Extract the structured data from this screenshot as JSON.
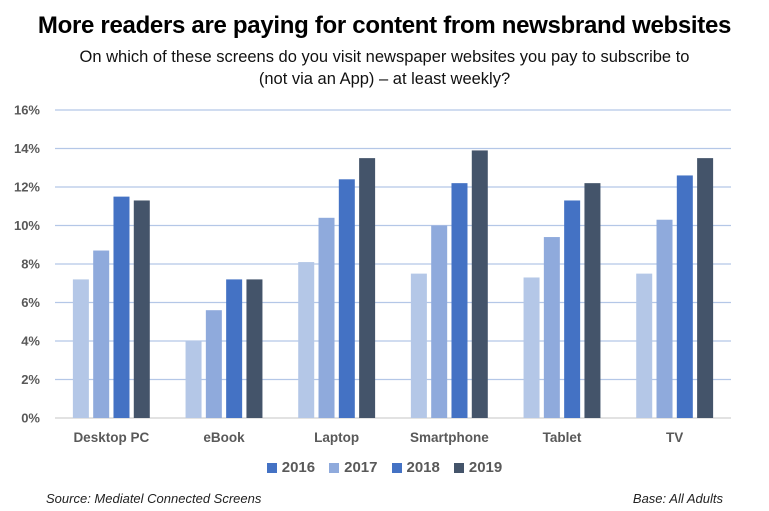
{
  "chart_data": {
    "type": "bar",
    "title": "More readers are paying for content from newsbrand websites",
    "subtitle_lines": [
      "On which of these screens do you visit newspaper websites you pay to subscribe to",
      "(not via an App) – at least weekly?"
    ],
    "xlabel": "",
    "ylabel": "",
    "ylim": [
      0,
      16
    ],
    "y_ticks": [
      "0%",
      "2%",
      "4%",
      "6%",
      "8%",
      "10%",
      "12%",
      "14%",
      "16%"
    ],
    "y_tick_values": [
      0,
      2,
      4,
      6,
      8,
      10,
      12,
      14,
      16
    ],
    "grid": true,
    "legend_position": "bottom",
    "categories": [
      "Desktop PC",
      "eBook",
      "Laptop",
      "Smartphone",
      "Tablet",
      "TV"
    ],
    "series": [
      {
        "name": "2016",
        "color": "#B4C7E7",
        "legend_color": "#4472C4",
        "values": [
          7.2,
          4.0,
          8.1,
          7.5,
          7.3,
          7.5
        ]
      },
      {
        "name": "2017",
        "color": "#8FAADC",
        "legend_color": "#8FAADC",
        "values": [
          8.7,
          5.6,
          10.4,
          10.0,
          9.4,
          10.3
        ]
      },
      {
        "name": "2018",
        "color": "#4472C4",
        "legend_color": "#4472C4",
        "values": [
          11.5,
          7.2,
          12.4,
          12.2,
          11.3,
          12.6
        ]
      },
      {
        "name": "2019",
        "color": "#44546A",
        "legend_color": "#44546A",
        "values": [
          11.3,
          7.2,
          13.5,
          13.9,
          12.2,
          13.5
        ]
      }
    ]
  },
  "footer": {
    "source": "Source: Mediatel Connected Screens",
    "base": "Base: All Adults"
  },
  "colors": {
    "gridline": "#B4C7E7",
    "axis": "#D9D9D9"
  }
}
